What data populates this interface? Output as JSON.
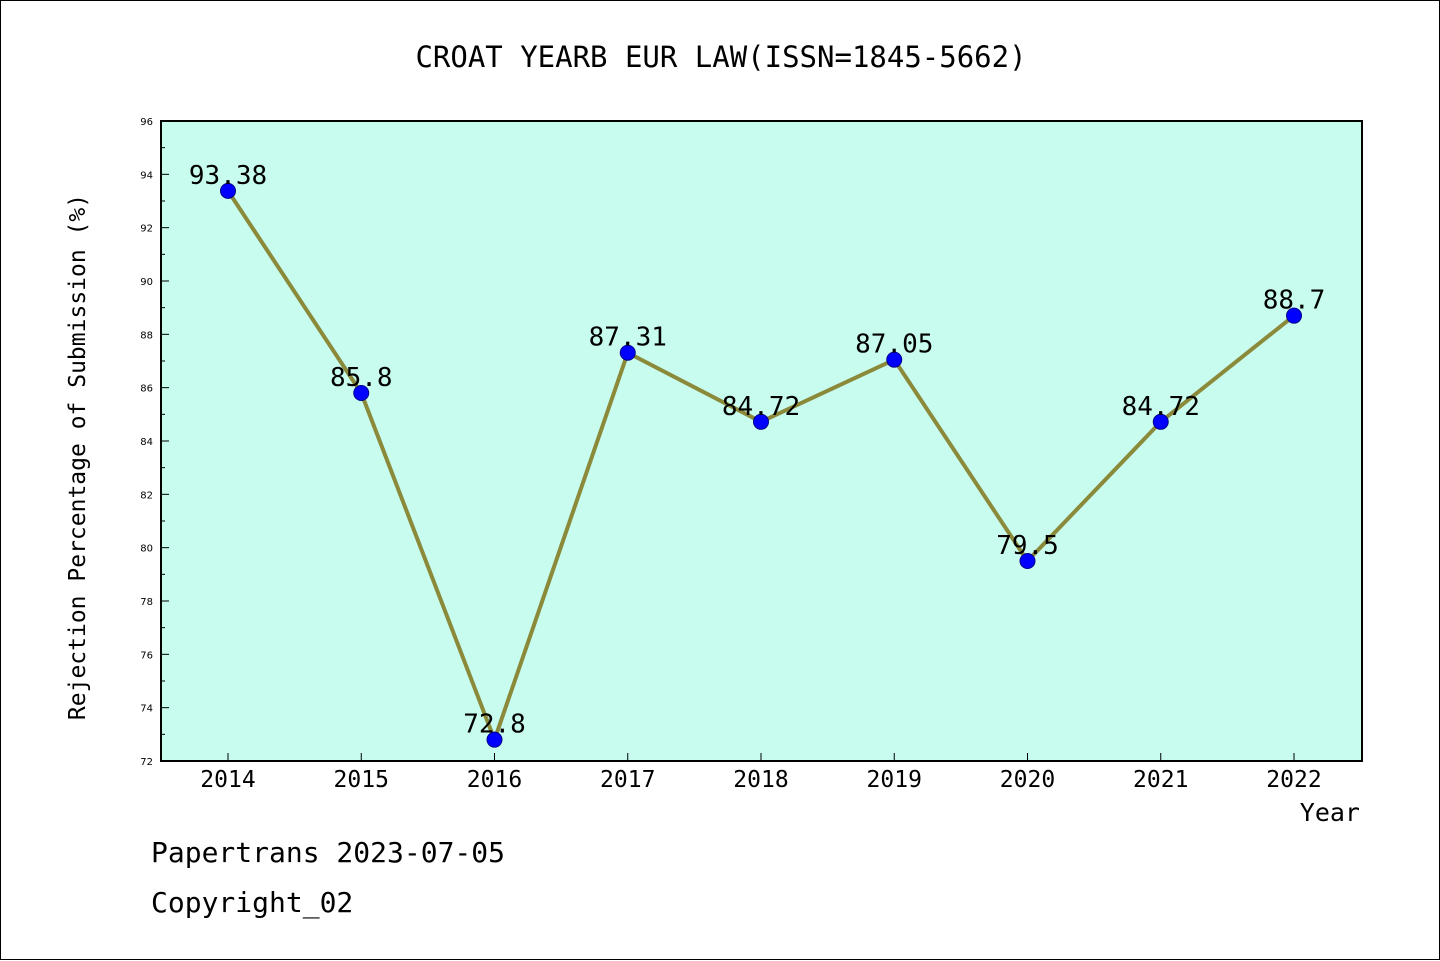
{
  "chart_data": {
    "type": "line",
    "title": "CROAT YEARB EUR LAW(ISSN=1845-5662)",
    "xlabel": "Year",
    "ylabel": "Rejection Percentage of Submission (%)",
    "categories": [
      "2014",
      "2015",
      "2016",
      "2017",
      "2018",
      "2019",
      "2020",
      "2021",
      "2022"
    ],
    "values": [
      93.38,
      85.8,
      72.8,
      87.31,
      84.72,
      87.05,
      79.5,
      84.72,
      88.7
    ],
    "data_labels": [
      "93.38",
      "85.8",
      "72.8",
      "87.31",
      "84.72",
      "87.05",
      "79.5",
      "84.72",
      "88.7"
    ],
    "ylim": [
      72,
      96
    ],
    "y_ticks": [
      "72",
      "74",
      "76",
      "78",
      "80",
      "82",
      "84",
      "86",
      "88",
      "90",
      "92",
      "94",
      "96"
    ],
    "grid": false,
    "colors": {
      "plot_background": "#c8fcee",
      "line": "#8b8a3b",
      "marker": "#0000ff"
    }
  },
  "footer": {
    "line1": "Papertrans 2023-07-05",
    "line2": "Copyright_02"
  }
}
